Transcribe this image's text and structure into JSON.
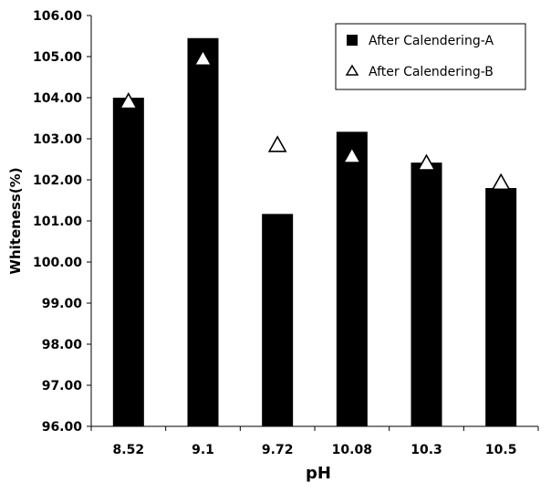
{
  "chart_data": {
    "type": "bar",
    "title": "",
    "xlabel": "pH",
    "ylabel": "Whiteness(%)",
    "categories": [
      "8.52",
      "9.1",
      "9.72",
      "10.08",
      "10.3",
      "10.5"
    ],
    "ylim": [
      96,
      106
    ],
    "ytick_step": 1,
    "ytick_labels": [
      "96.00",
      "97.00",
      "98.00",
      "99.00",
      "100.00",
      "101.00",
      "102.00",
      "103.00",
      "104.00",
      "105.00",
      "106.00"
    ],
    "grid": false,
    "legend_position": "top-right",
    "series": [
      {
        "name": "After Calendering-A",
        "kind": "bar",
        "color": "#000000",
        "values": [
          104.0,
          105.45,
          101.17,
          103.17,
          102.42,
          101.8
        ]
      },
      {
        "name": "After Calendering-B",
        "kind": "marker",
        "marker": "open-triangle",
        "color": "#000000",
        "values": [
          103.92,
          104.97,
          102.87,
          102.6,
          102.42,
          101.95
        ]
      }
    ]
  }
}
